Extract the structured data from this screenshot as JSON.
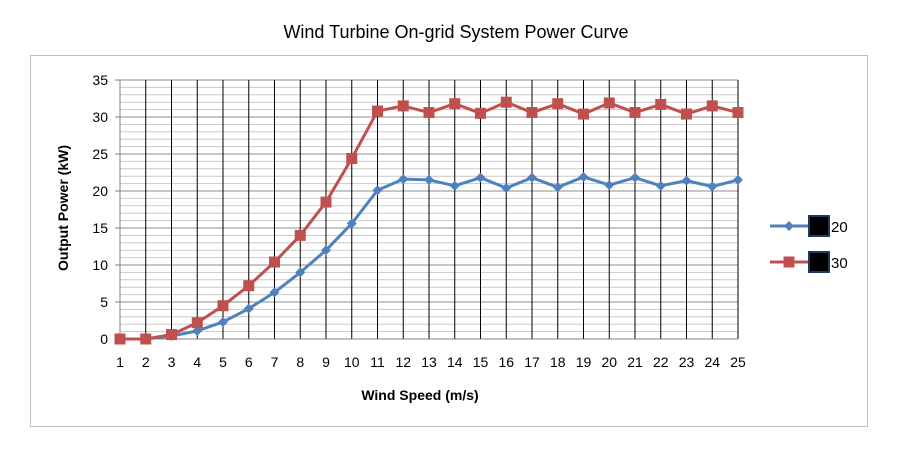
{
  "chart_data": {
    "type": "line",
    "title": "Wind Turbine On-grid System Power Curve",
    "xlabel": "Wind Speed (m/s)",
    "ylabel": "Output Power (kW)",
    "x": [
      1,
      2,
      3,
      4,
      5,
      6,
      7,
      8,
      9,
      10,
      11,
      12,
      13,
      14,
      15,
      16,
      17,
      18,
      19,
      20,
      21,
      22,
      23,
      24,
      25
    ],
    "ylim": [
      0,
      35
    ],
    "yticks": [
      0,
      5,
      10,
      15,
      20,
      25,
      30,
      35
    ],
    "grid": true,
    "legend_position": "right",
    "series": [
      {
        "name": "20",
        "color": "#4f81bd",
        "marker": "diamond",
        "values": [
          0,
          0,
          0.4,
          1.1,
          2.3,
          4.1,
          6.3,
          9.0,
          12.0,
          15.6,
          20.1,
          21.6,
          21.5,
          20.7,
          21.8,
          20.4,
          21.8,
          20.5,
          21.9,
          20.8,
          21.8,
          20.7,
          21.4,
          20.6,
          21.5
        ]
      },
      {
        "name": "30",
        "color": "#c0504d",
        "marker": "square",
        "values": [
          0,
          0,
          0.6,
          2.2,
          4.5,
          7.2,
          10.4,
          14.0,
          18.5,
          24.4,
          30.8,
          31.5,
          30.6,
          31.8,
          30.5,
          32.0,
          30.6,
          31.8,
          30.4,
          31.9,
          30.6,
          31.7,
          30.4,
          31.5,
          30.6
        ]
      }
    ]
  }
}
